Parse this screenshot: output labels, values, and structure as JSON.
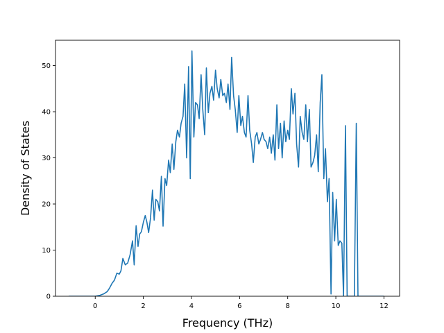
{
  "chart_data": {
    "type": "line",
    "title": "",
    "xlabel": "Frequency (THz)",
    "ylabel": "Density of States",
    "xlim": [
      -1.65,
      12.65
    ],
    "ylim": [
      0,
      55.5
    ],
    "xticks": [
      0,
      2,
      4,
      6,
      8,
      10,
      12
    ],
    "yticks": [
      0,
      10,
      20,
      30,
      40,
      50
    ],
    "grid": false,
    "line_color": "#1f77b4",
    "series": [
      {
        "x": [
          -1.1,
          -0.5,
          0.0,
          0.2,
          0.35,
          0.5,
          0.6,
          0.7,
          0.8,
          0.9,
          1.0,
          1.07,
          1.15,
          1.25,
          1.35,
          1.45,
          1.55,
          1.62,
          1.7,
          1.78,
          1.85,
          1.92,
          2.0,
          2.08,
          2.15,
          2.22,
          2.3,
          2.38,
          2.45,
          2.52,
          2.6,
          2.67,
          2.75,
          2.82,
          2.9,
          2.97,
          3.05,
          3.12,
          3.2,
          3.27,
          3.35,
          3.42,
          3.5,
          3.57,
          3.65,
          3.72,
          3.8,
          3.88,
          3.95,
          4.02,
          4.1,
          4.17,
          4.25,
          4.32,
          4.4,
          4.47,
          4.55,
          4.62,
          4.7,
          4.77,
          4.85,
          4.92,
          5.0,
          5.07,
          5.15,
          5.22,
          5.3,
          5.37,
          5.45,
          5.52,
          5.6,
          5.67,
          5.75,
          5.82,
          5.9,
          5.97,
          6.05,
          6.12,
          6.2,
          6.27,
          6.35,
          6.42,
          6.5,
          6.57,
          6.65,
          6.72,
          6.8,
          6.87,
          6.95,
          7.02,
          7.1,
          7.17,
          7.25,
          7.32,
          7.4,
          7.47,
          7.55,
          7.62,
          7.7,
          7.77,
          7.85,
          7.92,
          8.0,
          8.07,
          8.15,
          8.22,
          8.3,
          8.37,
          8.45,
          8.52,
          8.6,
          8.67,
          8.75,
          8.82,
          8.9,
          8.97,
          9.05,
          9.12,
          9.2,
          9.27,
          9.35,
          9.42,
          9.5,
          9.57,
          9.65,
          9.72,
          9.8,
          9.87,
          9.95,
          10.02,
          10.1,
          10.17,
          10.25,
          10.32,
          10.4,
          10.47,
          10.55,
          10.62,
          10.7,
          10.77,
          10.85,
          10.92,
          11.0,
          11.5,
          12.0
        ],
        "y": [
          0,
          0,
          0,
          0.2,
          0.5,
          1.0,
          1.8,
          2.8,
          3.5,
          5.0,
          4.8,
          5.5,
          8.2,
          6.8,
          7.2,
          9.0,
          12.0,
          6.8,
          15.3,
          10.8,
          13.5,
          14.0,
          16.0,
          17.5,
          16.0,
          13.8,
          17.0,
          23.0,
          16.5,
          21.0,
          20.5,
          18.5,
          26.0,
          15.2,
          25.5,
          24.0,
          29.5,
          26.8,
          33.0,
          27.5,
          33.5,
          36.0,
          34.5,
          37.5,
          39.0,
          46.0,
          30.0,
          49.8,
          25.5,
          53.2,
          34.5,
          42.0,
          41.5,
          38.5,
          48.0,
          40.5,
          35.0,
          49.5,
          39.8,
          44.0,
          45.5,
          42.5,
          49.0,
          45.0,
          43.0,
          47.0,
          43.5,
          44.0,
          42.0,
          46.0,
          40.5,
          51.8,
          43.5,
          40.5,
          35.5,
          43.5,
          37.0,
          39.0,
          35.5,
          34.5,
          43.5,
          36.0,
          33.0,
          29.0,
          34.5,
          35.5,
          33.0,
          34.0,
          35.5,
          34.0,
          33.5,
          32.0,
          34.5,
          31.0,
          35.0,
          29.5,
          41.5,
          32.0,
          37.5,
          30.0,
          38.0,
          33.5,
          36.0,
          34.0,
          45.0,
          39.5,
          44.0,
          33.0,
          28.0,
          39.0,
          35.5,
          34.0,
          41.5,
          33.5,
          40.5,
          28.0,
          29.0,
          30.5,
          35.0,
          27.0,
          42.0,
          48.0,
          25.5,
          32.0,
          20.5,
          25.5,
          0.5,
          22.5,
          12.0,
          21.0,
          11.0,
          12.0,
          11.5,
          0,
          37.0,
          0,
          0,
          0,
          0,
          0,
          37.5,
          0,
          0,
          0,
          0
        ]
      }
    ]
  }
}
